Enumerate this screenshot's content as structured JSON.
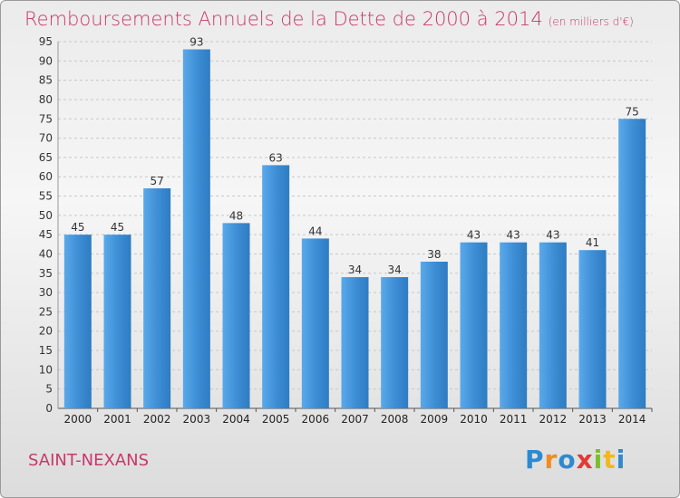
{
  "chart_data": {
    "type": "bar",
    "title": "Remboursements Annuels de la Dette de 2000 à 2014",
    "subtitle": "(en milliers d'€)",
    "categories": [
      "2000",
      "2001",
      "2002",
      "2003",
      "2004",
      "2005",
      "2006",
      "2007",
      "2008",
      "2009",
      "2010",
      "2011",
      "2012",
      "2013",
      "2014"
    ],
    "values": [
      45,
      45,
      57,
      93,
      48,
      63,
      44,
      34,
      34,
      38,
      43,
      43,
      43,
      41,
      75
    ],
    "ylim": [
      0,
      95
    ],
    "yticks": [
      0,
      5,
      10,
      15,
      20,
      25,
      30,
      35,
      40,
      45,
      50,
      55,
      60,
      65,
      70,
      75,
      80,
      85,
      90,
      95
    ],
    "grid": true,
    "bar_color": "#3f8fd6"
  },
  "footer": {
    "city": "SAINT-NEXANS",
    "logo_letters": [
      "P",
      "r",
      "o",
      "x",
      "i",
      "t",
      "i"
    ],
    "logo_colors": [
      "#2d8ad0",
      "#f28c1e",
      "#2d8ad0",
      "#e23a32",
      "#7bbf2a",
      "#f2b81e",
      "#2d8ad0"
    ]
  }
}
